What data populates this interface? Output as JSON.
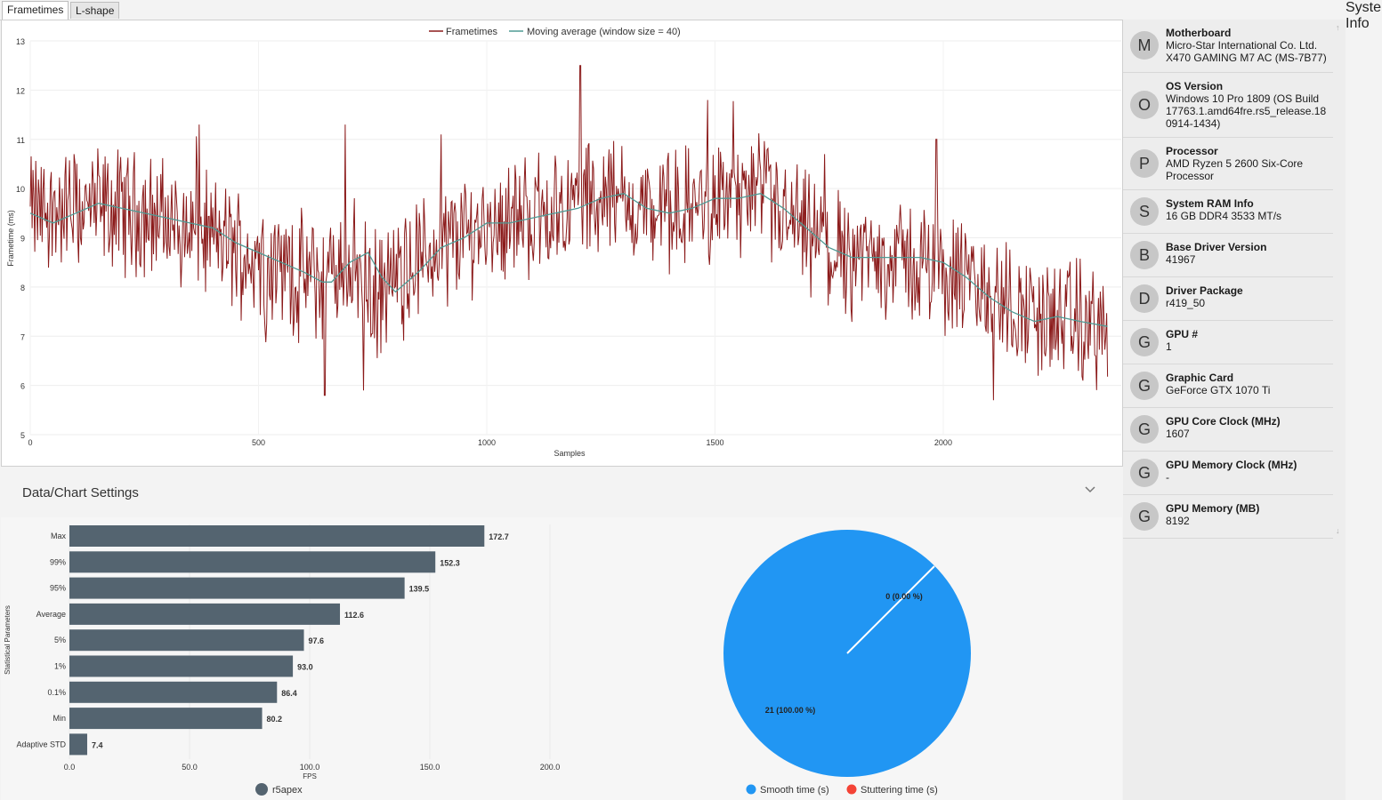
{
  "tabs": [
    {
      "label": "Frametimes"
    },
    {
      "label": "L-shape"
    }
  ],
  "frametime_chart": {
    "legend": {
      "series1": "Frametimes",
      "series2": "Moving average (window size = 40)"
    },
    "ylabel": "Frametime (ms)",
    "xlabel": "Samples",
    "y_ticks": [
      "13",
      "12",
      "11",
      "10",
      "9",
      "8",
      "7",
      "6",
      "5"
    ],
    "x_ticks": [
      "0",
      "500",
      "1000",
      "1500",
      "2000"
    ]
  },
  "settings": {
    "label": "Data/Chart Settings"
  },
  "sidebar": {
    "rail_label": "System Info",
    "items": [
      {
        "letter": "M",
        "key": "Motherboard",
        "value": "Micro-Star International Co. Ltd. X470 GAMING M7 AC (MS-7B77)"
      },
      {
        "letter": "O",
        "key": "OS Version",
        "value": "Windows 10 Pro 1809 (OS Build 17763.1.amd64fre.rs5_release.18 0914-1434)"
      },
      {
        "letter": "P",
        "key": "Processor",
        "value": "AMD Ryzen 5 2600 Six-Core Processor"
      },
      {
        "letter": "S",
        "key": "System RAM Info",
        "value": "16 GB DDR4 3533 MT/s"
      },
      {
        "letter": "B",
        "key": "Base Driver Version",
        "value": "41967"
      },
      {
        "letter": "D",
        "key": "Driver Package",
        "value": "r419_50"
      },
      {
        "letter": "G",
        "key": "GPU #",
        "value": "1"
      },
      {
        "letter": "G",
        "key": "Graphic Card",
        "value": "GeForce GTX 1070 Ti"
      },
      {
        "letter": "G",
        "key": "GPU Core Clock (MHz)",
        "value": "1607"
      },
      {
        "letter": "G",
        "key": "GPU Memory Clock (MHz)",
        "value": "-"
      },
      {
        "letter": "G",
        "key": "GPU Memory (MB)",
        "value": "8192"
      }
    ]
  },
  "colors": {
    "frametime": "#8b1a1a",
    "moving_avg": "#4f9a94",
    "bar": "#546470",
    "smooth": "#2196f3",
    "stutter": "#f44336"
  },
  "chart_data": [
    {
      "type": "line",
      "title": "",
      "xlabel": "Samples",
      "ylabel": "Frametime (ms)",
      "xlim": [
        0,
        2390
      ],
      "ylim": [
        5,
        13
      ],
      "legend": "top-center",
      "series": [
        {
          "name": "Frametimes",
          "color": "#8b1a1a",
          "anchors": [
            [
              0,
              9.5
            ],
            [
              120,
              9.6
            ],
            [
              250,
              9.5
            ],
            [
              400,
              9.0
            ],
            [
              520,
              8.5
            ],
            [
              640,
              8.1
            ],
            [
              700,
              8.6
            ],
            [
              760,
              7.8
            ],
            [
              850,
              8.6
            ],
            [
              1000,
              9.3
            ],
            [
              1120,
              9.5
            ],
            [
              1200,
              9.7
            ],
            [
              1260,
              9.9
            ],
            [
              1330,
              9.6
            ],
            [
              1400,
              9.5
            ],
            [
              1500,
              9.8
            ],
            [
              1600,
              9.8
            ],
            [
              1760,
              8.6
            ],
            [
              1900,
              8.6
            ],
            [
              2050,
              8.1
            ],
            [
              2200,
              7.4
            ],
            [
              2330,
              7.2
            ]
          ],
          "spikes": [
            [
              1205,
              12.5
            ],
            [
              370,
              11.3
            ],
            [
              690,
              11.3
            ],
            [
              900,
              11.1
            ],
            [
              1740,
              10.7
            ],
            [
              645,
              5.8
            ],
            [
              730,
              5.9
            ],
            [
              2110,
              5.7
            ],
            [
              1985,
              11.0
            ],
            [
              2210,
              8.2
            ]
          ]
        },
        {
          "name": "Moving average (window size = 40)",
          "color": "#4f9a94",
          "points": [
            [
              0,
              9.5
            ],
            [
              50,
              9.3
            ],
            [
              100,
              9.5
            ],
            [
              150,
              9.7
            ],
            [
              200,
              9.6
            ],
            [
              250,
              9.5
            ],
            [
              300,
              9.4
            ],
            [
              350,
              9.3
            ],
            [
              400,
              9.2
            ],
            [
              450,
              8.9
            ],
            [
              500,
              8.7
            ],
            [
              550,
              8.5
            ],
            [
              600,
              8.3
            ],
            [
              640,
              8.1
            ],
            [
              660,
              8.1
            ],
            [
              700,
              8.5
            ],
            [
              740,
              8.7
            ],
            [
              770,
              8.2
            ],
            [
              800,
              7.9
            ],
            [
              850,
              8.3
            ],
            [
              900,
              8.8
            ],
            [
              950,
              9.0
            ],
            [
              1000,
              9.3
            ],
            [
              1050,
              9.3
            ],
            [
              1100,
              9.4
            ],
            [
              1150,
              9.5
            ],
            [
              1200,
              9.6
            ],
            [
              1250,
              9.8
            ],
            [
              1300,
              9.9
            ],
            [
              1350,
              9.6
            ],
            [
              1400,
              9.5
            ],
            [
              1450,
              9.6
            ],
            [
              1500,
              9.8
            ],
            [
              1550,
              9.8
            ],
            [
              1600,
              9.9
            ],
            [
              1650,
              9.6
            ],
            [
              1700,
              9.2
            ],
            [
              1750,
              8.8
            ],
            [
              1800,
              8.6
            ],
            [
              1850,
              8.6
            ],
            [
              1900,
              8.6
            ],
            [
              1950,
              8.6
            ],
            [
              2000,
              8.5
            ],
            [
              2050,
              8.2
            ],
            [
              2100,
              7.8
            ],
            [
              2150,
              7.5
            ],
            [
              2200,
              7.3
            ],
            [
              2250,
              7.4
            ],
            [
              2300,
              7.3
            ],
            [
              2360,
              7.2
            ]
          ]
        }
      ]
    },
    {
      "type": "bar",
      "orientation": "horizontal",
      "categories": [
        "Max",
        "99%",
        "95%",
        "Average",
        "5%",
        "1%",
        "0.1%",
        "Min",
        "Adaptive STD"
      ],
      "values": [
        172.7,
        152.3,
        139.5,
        112.6,
        97.6,
        93.0,
        86.4,
        80.2,
        7.4
      ],
      "value_labels": [
        "172.7",
        "152.3",
        "139.5",
        "112.6",
        "97.6",
        "93.0",
        "86.4",
        "80.2",
        "7.4"
      ],
      "xlabel": "FPS",
      "ylabel": "Statistical Parameters",
      "xlim": [
        0,
        220
      ],
      "x_ticks": [
        0,
        50,
        100,
        150,
        200
      ],
      "x_tick_labels": [
        "0.0",
        "50.0",
        "100.0",
        "150.0",
        "200.0"
      ],
      "legend": [
        {
          "name": "r5apex",
          "color": "#546470"
        }
      ]
    },
    {
      "type": "pie",
      "slices": [
        {
          "name": "Smooth time (s)",
          "value": 21,
          "percent": 100.0,
          "label": "21 (100.00 %)",
          "color": "#2196f3"
        },
        {
          "name": "Stuttering time (s)",
          "value": 0,
          "percent": 0.0,
          "label": "0 (0.00 %)",
          "color": "#f44336"
        }
      ],
      "legend": "bottom-center"
    }
  ]
}
